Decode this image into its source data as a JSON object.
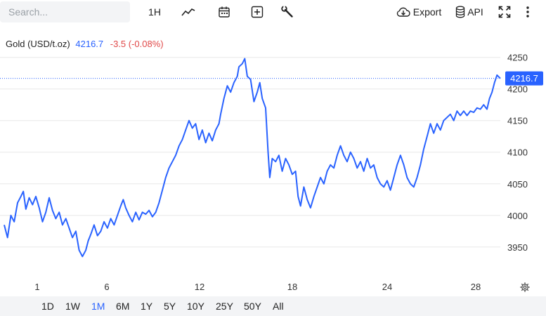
{
  "toolbar": {
    "search_placeholder": "Search...",
    "interval": "1H",
    "export_label": "Export",
    "api_label": "API"
  },
  "legend": {
    "name": "Gold (USD/t.oz)",
    "price": "4216.7",
    "change": "-3.5 (-0.08%)"
  },
  "price_tag": "4216.7",
  "ranges": [
    "1D",
    "1W",
    "1M",
    "6M",
    "1Y",
    "5Y",
    "10Y",
    "25Y",
    "50Y",
    "All"
  ],
  "active_range": "1M",
  "colors": {
    "line": "#2962ff",
    "negative": "#e04848",
    "grid": "#e8e8e8"
  },
  "chart_data": {
    "type": "line",
    "x_ticks": [
      "1",
      "6",
      "12",
      "18",
      "24",
      "28"
    ],
    "y_ticks": [
      3950,
      4000,
      4050,
      4100,
      4150,
      4200,
      4250
    ],
    "xlim": [
      0,
      29.8
    ],
    "ylim": [
      3902,
      4263
    ],
    "last_value": 4216.7,
    "grid": true,
    "series": [
      {
        "values": [
          [
            0.0,
            3985
          ],
          [
            0.2,
            3965
          ],
          [
            0.4,
            4000
          ],
          [
            0.6,
            3990
          ],
          [
            0.8,
            4020
          ],
          [
            1.0,
            4030
          ],
          [
            1.15,
            4038
          ],
          [
            1.3,
            4010
          ],
          [
            1.5,
            4028
          ],
          [
            1.7,
            4017
          ],
          [
            1.9,
            4030
          ],
          [
            2.1,
            4012
          ],
          [
            2.3,
            3990
          ],
          [
            2.5,
            4005
          ],
          [
            2.7,
            4028
          ],
          [
            2.9,
            4008
          ],
          [
            3.1,
            3995
          ],
          [
            3.3,
            4005
          ],
          [
            3.5,
            3985
          ],
          [
            3.7,
            3995
          ],
          [
            3.9,
            3980
          ],
          [
            4.1,
            3965
          ],
          [
            4.3,
            3975
          ],
          [
            4.5,
            3945
          ],
          [
            4.7,
            3935
          ],
          [
            4.9,
            3945
          ],
          [
            5.05,
            3960
          ],
          [
            5.2,
            3970
          ],
          [
            5.4,
            3985
          ],
          [
            5.6,
            3968
          ],
          [
            5.8,
            3975
          ],
          [
            6.0,
            3990
          ],
          [
            6.2,
            3980
          ],
          [
            6.4,
            3995
          ],
          [
            6.6,
            3985
          ],
          [
            6.8,
            4000
          ],
          [
            7.0,
            4015
          ],
          [
            7.15,
            4025
          ],
          [
            7.3,
            4012
          ],
          [
            7.5,
            4000
          ],
          [
            7.7,
            3990
          ],
          [
            7.9,
            4005
          ],
          [
            8.1,
            3993
          ],
          [
            8.3,
            4005
          ],
          [
            8.5,
            4002
          ],
          [
            8.7,
            4008
          ],
          [
            8.9,
            3998
          ],
          [
            9.1,
            4005
          ],
          [
            9.3,
            4020
          ],
          [
            9.5,
            4040
          ],
          [
            9.7,
            4060
          ],
          [
            9.9,
            4075
          ],
          [
            10.1,
            4085
          ],
          [
            10.3,
            4095
          ],
          [
            10.5,
            4110
          ],
          [
            10.7,
            4120
          ],
          [
            10.9,
            4135
          ],
          [
            11.1,
            4150
          ],
          [
            11.3,
            4138
          ],
          [
            11.5,
            4145
          ],
          [
            11.7,
            4120
          ],
          [
            11.9,
            4135
          ],
          [
            12.1,
            4115
          ],
          [
            12.3,
            4130
          ],
          [
            12.5,
            4118
          ],
          [
            12.7,
            4135
          ],
          [
            12.9,
            4145
          ],
          [
            13.0,
            4160
          ],
          [
            13.2,
            4185
          ],
          [
            13.4,
            4205
          ],
          [
            13.6,
            4195
          ],
          [
            13.8,
            4210
          ],
          [
            14.0,
            4220
          ],
          [
            14.1,
            4235
          ],
          [
            14.3,
            4240
          ],
          [
            14.45,
            4248
          ],
          [
            14.6,
            4220
          ],
          [
            14.8,
            4215
          ],
          [
            15.0,
            4180
          ],
          [
            15.2,
            4195
          ],
          [
            15.35,
            4210
          ],
          [
            15.5,
            4185
          ],
          [
            15.7,
            4170
          ],
          [
            15.85,
            4100
          ],
          [
            15.95,
            4060
          ],
          [
            16.1,
            4090
          ],
          [
            16.3,
            4085
          ],
          [
            16.5,
            4095
          ],
          [
            16.7,
            4070
          ],
          [
            16.9,
            4090
          ],
          [
            17.1,
            4080
          ],
          [
            17.3,
            4065
          ],
          [
            17.5,
            4070
          ],
          [
            17.65,
            4030
          ],
          [
            17.8,
            4015
          ],
          [
            18.0,
            4045
          ],
          [
            18.2,
            4025
          ],
          [
            18.4,
            4012
          ],
          [
            18.6,
            4030
          ],
          [
            18.8,
            4045
          ],
          [
            19.0,
            4060
          ],
          [
            19.2,
            4050
          ],
          [
            19.4,
            4070
          ],
          [
            19.6,
            4080
          ],
          [
            19.8,
            4075
          ],
          [
            20.0,
            4095
          ],
          [
            20.2,
            4110
          ],
          [
            20.4,
            4095
          ],
          [
            20.6,
            4085
          ],
          [
            20.8,
            4100
          ],
          [
            21.0,
            4090
          ],
          [
            21.2,
            4075
          ],
          [
            21.4,
            4085
          ],
          [
            21.6,
            4070
          ],
          [
            21.8,
            4090
          ],
          [
            22.0,
            4075
          ],
          [
            22.2,
            4080
          ],
          [
            22.4,
            4060
          ],
          [
            22.6,
            4050
          ],
          [
            22.8,
            4045
          ],
          [
            23.0,
            4055
          ],
          [
            23.2,
            4040
          ],
          [
            23.4,
            4060
          ],
          [
            23.6,
            4080
          ],
          [
            23.8,
            4095
          ],
          [
            24.0,
            4080
          ],
          [
            24.2,
            4060
          ],
          [
            24.4,
            4050
          ],
          [
            24.6,
            4045
          ],
          [
            24.8,
            4060
          ],
          [
            25.0,
            4080
          ],
          [
            25.2,
            4105
          ],
          [
            25.4,
            4125
          ],
          [
            25.6,
            4145
          ],
          [
            25.8,
            4130
          ],
          [
            26.0,
            4145
          ],
          [
            26.2,
            4135
          ],
          [
            26.4,
            4150
          ],
          [
            26.6,
            4155
          ],
          [
            26.8,
            4160
          ],
          [
            27.0,
            4150
          ],
          [
            27.2,
            4165
          ],
          [
            27.4,
            4158
          ],
          [
            27.6,
            4165
          ],
          [
            27.8,
            4158
          ],
          [
            28.0,
            4165
          ],
          [
            28.2,
            4163
          ],
          [
            28.4,
            4170
          ],
          [
            28.6,
            4168
          ],
          [
            28.8,
            4175
          ],
          [
            29.0,
            4168
          ],
          [
            29.15,
            4185
          ],
          [
            29.3,
            4195
          ],
          [
            29.45,
            4210
          ],
          [
            29.6,
            4222
          ],
          [
            29.8,
            4216.7
          ]
        ]
      }
    ]
  }
}
